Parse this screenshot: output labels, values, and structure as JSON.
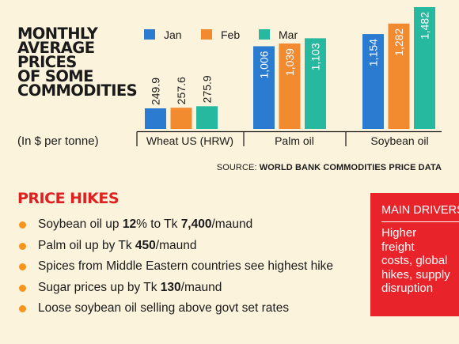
{
  "title_lines": [
    "MONTHLY",
    "AVERAGE",
    "PRICES",
    "OF SOME",
    "COMMODITIES"
  ],
  "unit_note": "(In $ per tonne)",
  "source_prefix": "SOURCE: ",
  "source_name": "WORLD BANK COMMODITIES PRICE DATA",
  "colors": {
    "Jan": "#2b7bd0",
    "Feb": "#f28a30",
    "Mar": "#27b8a0",
    "accent_red": "#e02020",
    "bullet": "#f7941d",
    "panel": "#e8232a"
  },
  "chart_data": {
    "type": "bar",
    "categories": [
      "Wheat US (HRW)",
      "Palm oil",
      "Soybean oil"
    ],
    "series": [
      {
        "name": "Jan",
        "values": [
          249.9,
          1006,
          1154
        ],
        "labels": [
          "249.9",
          "1,006",
          "1,154"
        ]
      },
      {
        "name": "Feb",
        "values": [
          257.6,
          1039,
          1282
        ],
        "labels": [
          "257.6",
          "1,039",
          "1,282"
        ]
      },
      {
        "name": "Mar",
        "values": [
          275.9,
          1103,
          1482
        ],
        "labels": [
          "275.9",
          "1,103",
          "1,482"
        ]
      }
    ],
    "ylim": [
      0,
      1530
    ],
    "legend": "top",
    "grid": false
  },
  "hikes_title": "PRICE HIKES",
  "hikes": [
    {
      "parts": [
        {
          "t": "Soybean oil up ",
          "b": false
        },
        {
          "t": "12",
          "b": true
        },
        {
          "t": "% to Tk ",
          "b": false
        },
        {
          "t": "7,400",
          "b": true
        },
        {
          "t": "/maund",
          "b": false
        }
      ]
    },
    {
      "parts": [
        {
          "t": "Palm oil up by Tk ",
          "b": false
        },
        {
          "t": "450",
          "b": true
        },
        {
          "t": "/maund",
          "b": false
        }
      ]
    },
    {
      "parts": [
        {
          "t": "Spices from Middle Eastern countries see highest hike",
          "b": false
        }
      ]
    },
    {
      "parts": [
        {
          "t": "Sugar prices up by Tk ",
          "b": false
        },
        {
          "t": "130",
          "b": true
        },
        {
          "t": "/maund",
          "b": false
        }
      ]
    },
    {
      "parts": [
        {
          "t": "Loose soybean oil selling above govt set rates",
          "b": false
        }
      ]
    }
  ],
  "drivers_title": "MAIN DRIVERS",
  "drivers_lines": [
    "Higher",
    "freight",
    "costs, global",
    "hikes, supply",
    "disruption"
  ]
}
